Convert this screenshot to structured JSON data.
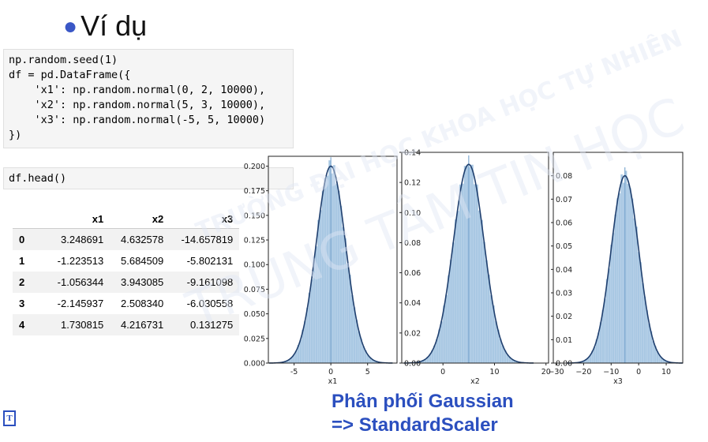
{
  "slide": {
    "title": "Ví dụ",
    "note_line1": "Phân phối Gaussian",
    "note_line2": "=> StandardScaler"
  },
  "code": {
    "cell1": [
      "np.random.seed(1)",
      "df = pd.DataFrame({",
      "    'x1': np.random.normal(0, 2, 10000),",
      "    'x2': np.random.normal(5, 3, 10000),",
      "    'x3': np.random.normal(-5, 5, 10000)",
      "})"
    ],
    "cell2": "df.head()"
  },
  "table": {
    "columns": [
      "",
      "x1",
      "x2",
      "x3"
    ],
    "rows": [
      [
        "0",
        "3.248691",
        "4.632578",
        "-14.657819"
      ],
      [
        "1",
        "-1.223513",
        "5.684509",
        "-5.802131"
      ],
      [
        "2",
        "-1.056344",
        "3.943085",
        "-9.161098"
      ],
      [
        "3",
        "-2.145937",
        "2.508340",
        "-6.030558"
      ],
      [
        "4",
        "1.730815",
        "4.216731",
        "0.131275"
      ]
    ]
  },
  "watermark": {
    "line1": "TRƯỜNG ĐẠI HỌC KHOA HỌC TỰ NHIÊN",
    "line2": "TRUNG TÂM TIN HỌC"
  },
  "colors": {
    "bar": "#a9c8e3",
    "curve": "#1f3f6e",
    "note": "#2b4fbf"
  },
  "chart_data": [
    {
      "type": "bar",
      "xlabel": "x1",
      "mean": 0,
      "std": 2,
      "peak": 0.2,
      "xlim": [
        -8.5,
        9
      ],
      "ylim": [
        0,
        0.21
      ],
      "xticks": [
        -5,
        0,
        5
      ],
      "xtick_labels": [
        "-5",
        "0",
        "5"
      ],
      "yticks": [
        0.0,
        0.025,
        0.05,
        0.075,
        0.1,
        0.125,
        0.15,
        0.175,
        0.2
      ],
      "ytick_labels": [
        "0.000",
        "0.025",
        "0.050",
        "0.075",
        "0.100",
        "0.125",
        "0.150",
        "0.175",
        "0.200"
      ]
    },
    {
      "type": "bar",
      "xlabel": "x2",
      "mean": 5,
      "std": 3,
      "peak": 0.132,
      "xlim": [
        -8,
        20.5
      ],
      "ylim": [
        0,
        0.14
      ],
      "xticks": [
        0,
        10,
        20
      ],
      "xtick_labels": [
        "0",
        "10",
        "20"
      ],
      "yticks": [
        0.0,
        0.02,
        0.04,
        0.06,
        0.08,
        0.1,
        0.12,
        0.14
      ],
      "ytick_labels": [
        "0.00",
        "0.02",
        "0.04",
        "0.06",
        "0.08",
        "0.10",
        "0.12",
        "0.14"
      ]
    },
    {
      "type": "bar",
      "xlabel": "x3",
      "mean": -5,
      "std": 5,
      "peak": 0.08,
      "xlim": [
        -31,
        16
      ],
      "ylim": [
        0,
        0.09
      ],
      "xticks": [
        -30,
        -20,
        -10,
        0,
        10
      ],
      "xtick_labels": [
        "−30",
        "−20",
        "−10",
        "0",
        "10"
      ],
      "yticks": [
        0.0,
        0.01,
        0.02,
        0.03,
        0.04,
        0.05,
        0.06,
        0.07,
        0.08
      ],
      "ytick_labels": [
        "0.00",
        "0.01",
        "0.02",
        "0.03",
        "0.04",
        "0.05",
        "0.06",
        "0.07",
        "0.08"
      ]
    }
  ]
}
